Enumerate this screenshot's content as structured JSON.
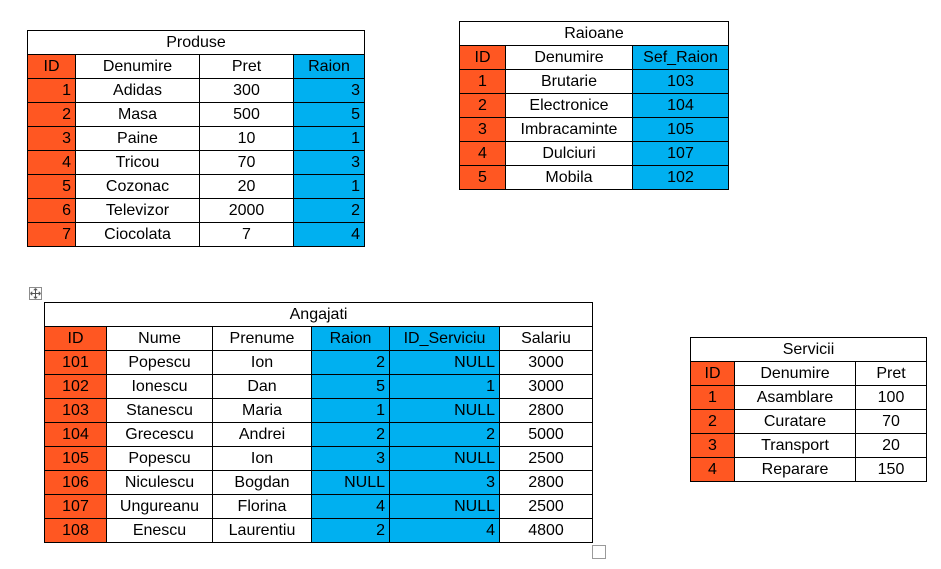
{
  "colors": {
    "key": "#FF5722",
    "foreign": "#00B0F0",
    "border": "#000000"
  },
  "tables": {
    "produse": {
      "title": "Produse",
      "headers": [
        "ID",
        "Denumire",
        "Pret",
        "Raion"
      ],
      "rows": [
        [
          "1",
          "Adidas",
          "300",
          "3"
        ],
        [
          "2",
          "Masa",
          "500",
          "5"
        ],
        [
          "3",
          "Paine",
          "10",
          "1"
        ],
        [
          "4",
          "Tricou",
          "70",
          "3"
        ],
        [
          "5",
          "Cozonac",
          "20",
          "1"
        ],
        [
          "6",
          "Televizor",
          "2000",
          "2"
        ],
        [
          "7",
          "Ciocolata",
          "7",
          "4"
        ]
      ]
    },
    "raioane": {
      "title": "Raioane",
      "headers": [
        "ID",
        "Denumire",
        "Sef_Raion"
      ],
      "rows": [
        [
          "1",
          "Brutarie",
          "103"
        ],
        [
          "2",
          "Electronice",
          "104"
        ],
        [
          "3",
          "Imbracaminte",
          "105"
        ],
        [
          "4",
          "Dulciuri",
          "107"
        ],
        [
          "5",
          "Mobila",
          "102"
        ]
      ]
    },
    "angajati": {
      "title": "Angajati",
      "headers": [
        "ID",
        "Nume",
        "Prenume",
        "Raion",
        "ID_Serviciu",
        "Salariu"
      ],
      "rows": [
        [
          "101",
          "Popescu",
          "Ion",
          "2",
          "NULL",
          "3000"
        ],
        [
          "102",
          "Ionescu",
          "Dan",
          "5",
          "1",
          "3000"
        ],
        [
          "103",
          "Stanescu",
          "Maria",
          "1",
          "NULL",
          "2800"
        ],
        [
          "104",
          "Grecescu",
          "Andrei",
          "2",
          "2",
          "5000"
        ],
        [
          "105",
          "Popescu",
          "Ion",
          "3",
          "NULL",
          "2500"
        ],
        [
          "106",
          "Niculescu",
          "Bogdan",
          "NULL",
          "3",
          "2800"
        ],
        [
          "107",
          "Ungureanu",
          "Florina",
          "4",
          "NULL",
          "2500"
        ],
        [
          "108",
          "Enescu",
          "Laurentiu",
          "2",
          "4",
          "4800"
        ]
      ]
    },
    "servicii": {
      "title": "Servicii",
      "headers": [
        "ID",
        "Denumire",
        "Pret"
      ],
      "rows": [
        [
          "1",
          "Asamblare",
          "100"
        ],
        [
          "2",
          "Curatare",
          "70"
        ],
        [
          "3",
          "Transport",
          "20"
        ],
        [
          "4",
          "Reparare",
          "150"
        ]
      ]
    }
  },
  "icons": {
    "move": "move-handle-icon",
    "resize": "resize-handle-icon"
  }
}
